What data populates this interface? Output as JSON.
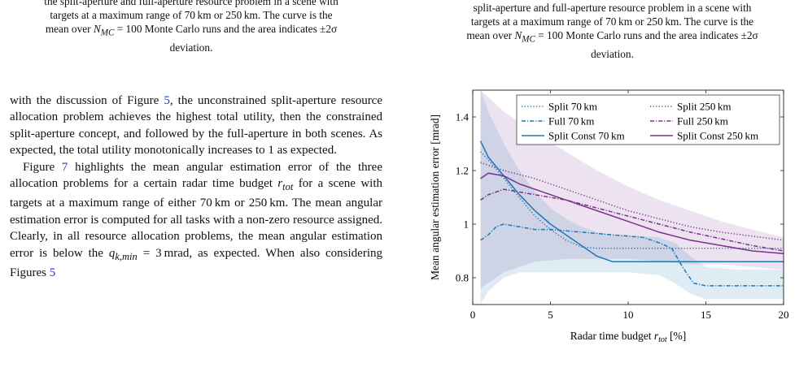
{
  "caption_left": {
    "line1": "the split-aperture and full-aperture resource problem in a scene with",
    "line2": "targets at a maximum range of 70 km or 250 km. The curve is the",
    "line3_pre": "mean over ",
    "nmc_sym": "N",
    "nmc_sub": "MC",
    "line3_post": " = 100 Monte Carlo runs and the area indicates ±2σ",
    "line4": "deviation."
  },
  "caption_right": {
    "line1": "split-aperture and full-aperture resource problem in a scene with",
    "line2": "targets at a maximum range of 70 km or 250 km. The curve is the",
    "line3_pre": "mean over ",
    "nmc_sym": "N",
    "nmc_sub": "MC",
    "line3_post": " = 100 Monte Carlo runs and the area indicates ±2σ",
    "line4": "deviation."
  },
  "body": {
    "p1_pre": "with the discussion of Figure ",
    "p1_ref": "5",
    "p1_post": ", the unconstrained split-aperture resource allocation problem achieves the highest total utility, then the constrained split-aperture concept, and followed by the full-aperture in both scenes. As expected, the total utility monotonically increases to 1 as expected.",
    "p2_pre": "Figure ",
    "p2_ref": "7",
    "p2_a": " highlights the mean angular estimation error of the three allocation problems for a certain radar time budget ",
    "p2_r": "r",
    "p2_rsub": "tot",
    "p2_b": " for a scene with targets at a maximum range of either 70 km or 250 km. The mean angular estimation error is computed for all tasks with a non-zero resource assigned. Clearly, in all resource allocation problems, the mean angular estimation error is below the ",
    "p2_q": "q",
    "p2_qsub": "k,min",
    "p2_c": " = 3 mrad, as expected. When also considering Figures ",
    "p2_ref2": "5"
  },
  "chart_data": {
    "type": "line",
    "xlabel": "Radar time budget r_tot [%]",
    "xlabel_pre": "Radar time budget ",
    "xlabel_sym": "r",
    "xlabel_sub": "tot",
    "xlabel_post": " [%]",
    "ylabel": "Mean angular estimation error [mrad]",
    "xlim": [
      0,
      20
    ],
    "ylim": [
      0.7,
      1.5
    ],
    "xticks": [
      0,
      5,
      10,
      15,
      20
    ],
    "yticks": [
      0.8,
      1,
      1.2,
      1.4
    ],
    "xtick_labels": [
      "0",
      "5",
      "10",
      "15",
      "20"
    ],
    "ytick_labels": [
      "0.8",
      "1",
      "1.2",
      "1.4"
    ],
    "legend_position": "top-right",
    "colors": {
      "blue": "#1f77b4",
      "purple": "#7e2f8e"
    },
    "series": [
      {
        "name": "Split 70 km",
        "color": "#1f77b4",
        "dash": "dotted",
        "x": [
          0.5,
          1,
          2,
          3,
          4,
          5,
          6,
          7,
          8,
          9,
          10,
          12,
          15,
          20
        ],
        "y": [
          1.27,
          1.24,
          1.17,
          1.1,
          1.03,
          0.98,
          0.94,
          0.915,
          0.91,
          0.91,
          0.91,
          0.91,
          0.91,
          0.91
        ]
      },
      {
        "name": "Split 250 km",
        "color": "#7e2f8e",
        "dash": "dotted",
        "x": [
          0.5,
          1,
          2,
          4,
          6,
          8,
          10,
          12,
          14,
          16,
          18,
          20
        ],
        "y": [
          1.23,
          1.22,
          1.2,
          1.17,
          1.13,
          1.09,
          1.05,
          1.02,
          0.99,
          0.97,
          0.955,
          0.94
        ]
      },
      {
        "name": "Full 70 km",
        "color": "#1f77b4",
        "dash": "dashdot",
        "x": [
          0.5,
          1,
          1.5,
          2,
          3,
          4,
          5,
          6,
          7,
          8,
          9,
          10,
          11,
          12,
          12.8,
          13.5,
          14.2,
          15,
          16,
          17,
          18,
          19,
          20
        ],
        "y": [
          0.94,
          0.96,
          0.99,
          1.0,
          0.99,
          0.98,
          0.98,
          0.975,
          0.97,
          0.965,
          0.96,
          0.955,
          0.95,
          0.93,
          0.91,
          0.84,
          0.78,
          0.77,
          0.77,
          0.77,
          0.77,
          0.77,
          0.77
        ]
      },
      {
        "name": "Full 250 km",
        "color": "#7e2f8e",
        "dash": "dashdot",
        "x": [
          0.5,
          1,
          2,
          3,
          4,
          6,
          8,
          10,
          12,
          14,
          16,
          18,
          20
        ],
        "y": [
          1.09,
          1.11,
          1.13,
          1.12,
          1.11,
          1.09,
          1.06,
          1.03,
          1.0,
          0.97,
          0.945,
          0.92,
          0.9
        ]
      },
      {
        "name": "Split Const 70 km",
        "color": "#1f77b4",
        "dash": "solid",
        "x": [
          0.5,
          1,
          2,
          3,
          4,
          5,
          6,
          7,
          8,
          9,
          10,
          12,
          15,
          20
        ],
        "y": [
          1.31,
          1.25,
          1.18,
          1.11,
          1.05,
          1.0,
          0.96,
          0.92,
          0.88,
          0.86,
          0.86,
          0.86,
          0.86,
          0.86
        ]
      },
      {
        "name": "Split Const 250 km",
        "color": "#7e2f8e",
        "dash": "solid",
        "x": [
          0.5,
          1,
          2,
          3,
          4,
          5,
          6,
          8,
          10,
          12,
          14,
          16,
          18,
          20
        ],
        "y": [
          1.17,
          1.19,
          1.18,
          1.15,
          1.13,
          1.11,
          1.09,
          1.05,
          1.01,
          0.97,
          0.94,
          0.92,
          0.9,
          0.89
        ]
      }
    ],
    "bands": [
      {
        "color": "#7e2f8e",
        "x": [
          0.5,
          2,
          4,
          6,
          8,
          10,
          12,
          14,
          16,
          18,
          20
        ],
        "upper": [
          1.5,
          1.42,
          1.34,
          1.27,
          1.2,
          1.14,
          1.09,
          1.05,
          1.01,
          0.98,
          0.95
        ],
        "lower": [
          0.76,
          0.82,
          0.86,
          0.87,
          0.87,
          0.87,
          0.86,
          0.85,
          0.85,
          0.84,
          0.83
        ]
      },
      {
        "color": "#1f77b4",
        "x": [
          0.5,
          1,
          2,
          3,
          4,
          5,
          6,
          7,
          8,
          9,
          10,
          12,
          13,
          14,
          15,
          17,
          20
        ],
        "upper": [
          1.5,
          1.42,
          1.3,
          1.2,
          1.12,
          1.06,
          1.02,
          0.99,
          0.97,
          0.96,
          0.96,
          0.95,
          0.93,
          0.88,
          0.84,
          0.83,
          0.83
        ],
        "lower": [
          0.7,
          0.75,
          0.8,
          0.82,
          0.82,
          0.82,
          0.82,
          0.82,
          0.82,
          0.82,
          0.82,
          0.81,
          0.78,
          0.74,
          0.72,
          0.72,
          0.72
        ]
      }
    ]
  }
}
